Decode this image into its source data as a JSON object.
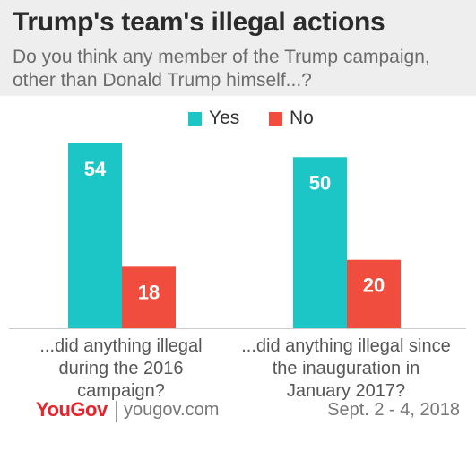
{
  "header": {
    "title": "Trump's team's illegal actions",
    "subtitle": "Do you think any member of the Trump campaign, other than Donald Trump himself...?"
  },
  "legend": {
    "yes_label": "Yes",
    "no_label": "No"
  },
  "colors": {
    "yes": "#1dc6c6",
    "no": "#f04d3f",
    "header_bg": "#eeeeee",
    "brand": "#e5242b"
  },
  "chart_data": {
    "type": "bar",
    "categories": [
      "...did anything illegal during the 2016 campaign?",
      "...did anything illegal since the inauguration in January 2017?"
    ],
    "series": [
      {
        "name": "Yes",
        "values": [
          54,
          50
        ]
      },
      {
        "name": "No",
        "values": [
          18,
          20
        ]
      }
    ],
    "ylim": [
      0,
      54
    ]
  },
  "footer": {
    "brand": "YouGov",
    "site": "yougov.com",
    "date": "Sept. 2 - 4, 2018"
  }
}
